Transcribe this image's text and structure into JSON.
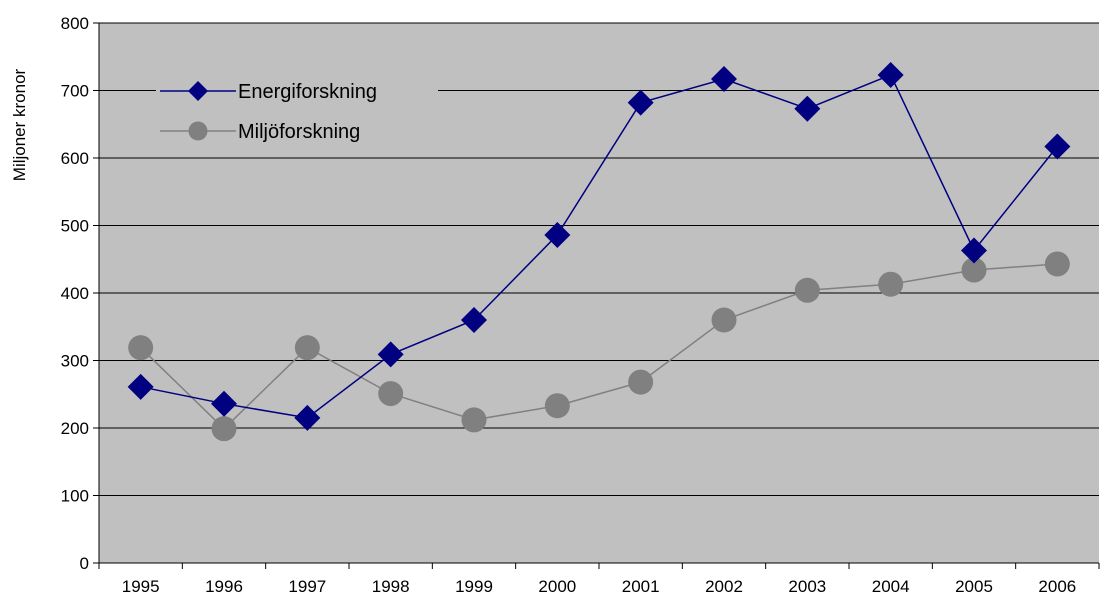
{
  "chart_data": {
    "type": "line",
    "title": "",
    "xlabel": "",
    "ylabel": "Miljoner kronor",
    "categories": [
      "1995",
      "1996",
      "1997",
      "1998",
      "1999",
      "2000",
      "2001",
      "2002",
      "2003",
      "2004",
      "2005",
      "2006"
    ],
    "ylim": [
      0,
      800
    ],
    "yticks": [
      0,
      100,
      200,
      300,
      400,
      500,
      600,
      700,
      800
    ],
    "ytick_labels": [
      "0",
      "100",
      "200",
      "300",
      "400",
      "500",
      "600",
      "700",
      "800"
    ],
    "grid": "horizontal",
    "background": "plot area gray",
    "legend_position": "top-left",
    "series": [
      {
        "name": "Energiforskning",
        "marker": "diamond",
        "color": "#000080",
        "values": [
          261,
          236,
          215,
          309,
          360,
          486,
          682,
          717,
          673,
          723,
          463,
          617
        ]
      },
      {
        "name": "Miljöforskning",
        "marker": "circle",
        "color": "#808080",
        "values": [
          319,
          199,
          319,
          251,
          212,
          233,
          268,
          360,
          404,
          413,
          434,
          443
        ]
      }
    ]
  },
  "colors": {
    "plot_background": "#c0c0c0",
    "gridline": "#000000"
  }
}
